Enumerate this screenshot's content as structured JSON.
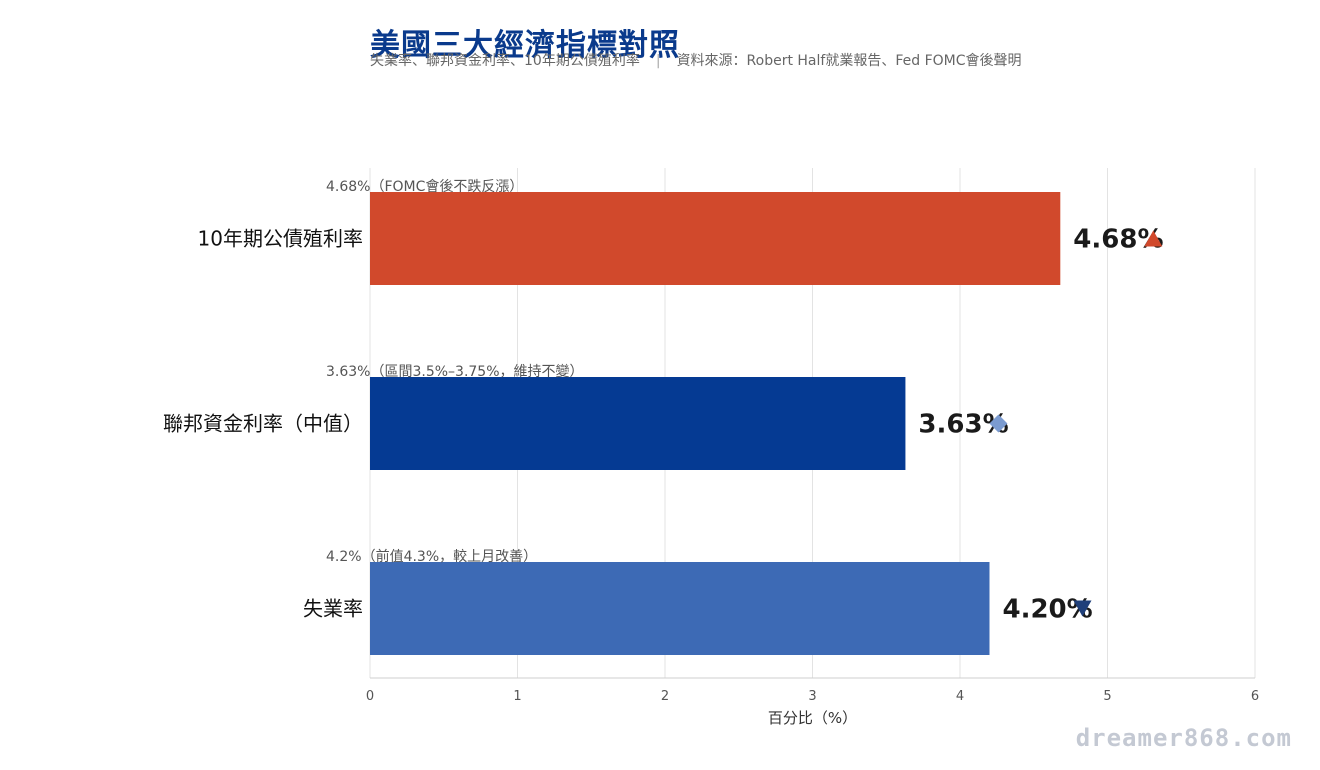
{
  "header": {
    "title": "美國三大經濟指標對照",
    "subtitle": "失業率、聯邦資金利率、10年期公債殖利率",
    "source": "資料來源：Robert Half就業報告、Fed FOMC會後聲明",
    "separator": "|"
  },
  "watermark": "dreamer868.com",
  "chart_data": {
    "type": "bar",
    "orientation": "horizontal",
    "categories": [
      "10年期公債殖利率",
      "聯邦資金利率（中值）",
      "失業率"
    ],
    "values": [
      4.68,
      3.63,
      4.2
    ],
    "value_labels": [
      "4.68%",
      "3.63%",
      "4.20%"
    ],
    "annotations": [
      "4.68%（FOMC會後不跌反漲）",
      "3.63%（區間3.5%–3.75%，維持不變）",
      "4.2%（前值4.3%，較上月改善）"
    ],
    "markers": [
      "triangle-up",
      "diamond",
      "triangle-down"
    ],
    "colors": [
      "#d1492c",
      "#053a93",
      "#3d6ab5"
    ],
    "marker_colors": [
      "#d1492c",
      "#7b9bd0",
      "#1f3f7a"
    ],
    "xlabel": "百分比（%）",
    "xlim": [
      0,
      6
    ],
    "xticks": [
      0,
      1,
      2,
      3,
      4,
      5,
      6
    ],
    "grid": true
  }
}
